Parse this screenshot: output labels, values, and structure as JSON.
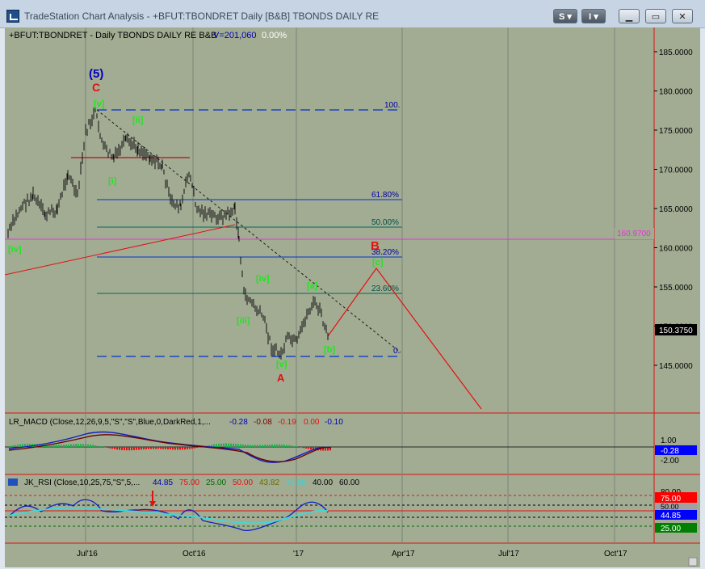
{
  "window": {
    "title": "TradeStation Chart Analysis - +BFUT:TBONDRET Daily [B&B] TBONDS DAILY RE",
    "btn_s": "S ▾",
    "btn_i": "I ▾",
    "btn_min": "▁",
    "btn_max": "▭",
    "btn_close": "✕"
  },
  "header": {
    "symbol": "+BFUT:TBONDRET - Daily  TBONDS DAILY RE  B&B",
    "volume": "V=201,060",
    "change": "0.00%"
  },
  "price_axis": [
    "185.0000",
    "180.0000",
    "175.0000",
    "170.0000",
    "165.0000",
    "160.0000",
    "155.0000",
    "150.0000",
    "145.0000"
  ],
  "last_price": "150.3750",
  "pink_level": "160.9700",
  "fib_labels": [
    "100.",
    "61.80%",
    "50.00%",
    "38.20%",
    "23.60%",
    "0."
  ],
  "wave_labels": {
    "five": "(5)",
    "c_top": "C",
    "v_top": "[v]",
    "ii": "[ii]",
    "i": "[i]",
    "iv_left": "[iv]",
    "iv_mid": "[iv]",
    "iii": "[iii]",
    "v_bot": "[v]",
    "a": "A",
    "a_wave": "[a]",
    "b_wave": "[b]",
    "b_big": "B",
    "c_wave": "[c]"
  },
  "macd": {
    "title": "LR_MACD (Close,12,26,9,5,\"S\",\"S\",Blue,0,DarkRed,1,...",
    "v1": "-0.28",
    "v2": "-0.08",
    "v3": "-0.19",
    "v4": "0.00",
    "v5": "-0.10",
    "axis": [
      "1.00",
      "-2.00"
    ],
    "current": "-0.28"
  },
  "rsi": {
    "title": "JK_RSI (Close,10,25,75,\"S\",5,...",
    "v1": "44.85",
    "v2": "75.00",
    "v3": "25.00",
    "v4": "50.00",
    "v5": "43.82",
    "v6": "46.68",
    "v7": "40.00",
    "v8": "60.00",
    "axis_box": [
      "75.00",
      "50.00",
      "44.85",
      "25.00"
    ],
    "top_tick": "80.00"
  },
  "time_axis": [
    "Jul'16",
    "Oct'16",
    "'17",
    "Apr'17",
    "Jul'17",
    "Oct'17"
  ],
  "colors": {
    "bg": "#a2ac93",
    "fib_blue": "#0033cc",
    "fib_teal": "#006a5a",
    "wave_green": "#1fe61f",
    "red": "#e41010",
    "pink": "#e832d8"
  }
}
